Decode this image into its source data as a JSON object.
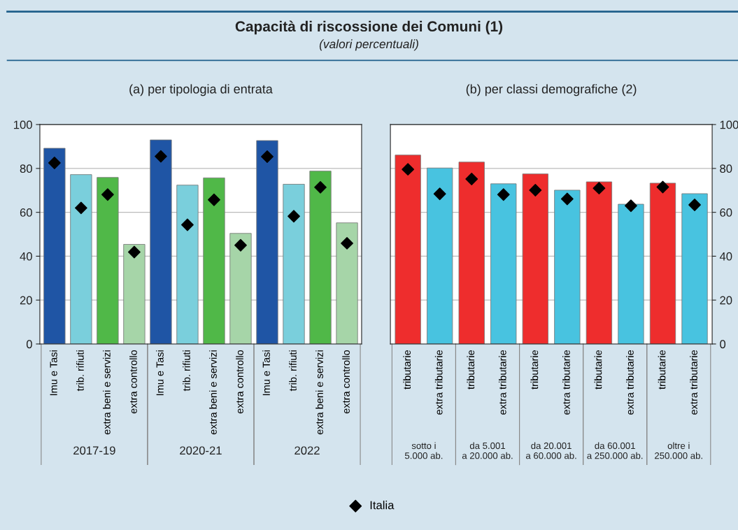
{
  "chart_data": [
    {
      "type": "other",
      "title": "Capacità di riscossione dei Comuni (1)",
      "subtitle": "(valori percentuali)"
    },
    {
      "type": "bar",
      "title": "(a) per tipologia di entrata",
      "categories": [
        "Imu e Tasi",
        "trib. rifiuti",
        "extra beni e servizi",
        "extra controllo",
        "Imu e Tasi",
        "trib. rifiuti",
        "extra beni e servizi",
        "extra controllo",
        "Imu e Tasi",
        "trib. rifiuti",
        "extra beni e servizi",
        "extra controllo"
      ],
      "series": [
        {
          "type": "bar",
          "colors": [
            "#1f55a5",
            "#7acfdc",
            "#50b848",
            "#a6d5a8",
            "#1f55a5",
            "#7acfdc",
            "#50b848",
            "#a6d5a8",
            "#1f55a5",
            "#7acfdc",
            "#50b848",
            "#a6d5a8"
          ],
          "values": [
            89.2,
            77.2,
            75.9,
            45.4,
            93.0,
            72.4,
            75.7,
            50.4,
            92.7,
            72.8,
            78.8,
            55.2
          ]
        },
        {
          "type": "scatter",
          "name": "Italia",
          "color": "#000000",
          "values": [
            82.5,
            62.0,
            68.1,
            41.9,
            85.5,
            54.3,
            65.7,
            45.0,
            85.4,
            58.2,
            71.4,
            45.9
          ]
        }
      ],
      "annotations": [
        "2017-19",
        "2020-21",
        "2022"
      ],
      "ylim": [
        0,
        100
      ],
      "yticks": [
        0,
        20,
        40,
        60,
        80,
        100
      ],
      "grid": "y",
      "marker": "diamond",
      "legend": "bottom"
    },
    {
      "type": "bar",
      "title": "(b) per classi demografiche (2)",
      "categories": [
        "tributarie",
        "extra tributarie",
        "tributarie",
        "extra tributarie",
        "tributarie",
        "extra tributarie",
        "tributarie",
        "extra tributarie",
        "tributarie",
        "extra tributarie"
      ],
      "series": [
        {
          "type": "bar",
          "axis": "y2",
          "colors": [
            "#ee2d2d",
            "#48c3e0",
            "#ee2d2d",
            "#48c3e0",
            "#ee2d2d",
            "#48c3e0",
            "#ee2d2d",
            "#48c3e0",
            "#ee2d2d",
            "#48c3e0"
          ],
          "values": [
            86.1,
            80.2,
            82.9,
            73.0,
            77.5,
            70.1,
            73.9,
            63.7,
            73.3,
            68.5
          ]
        },
        {
          "type": "scatter",
          "axis": "y2",
          "color": "#000000",
          "values": [
            79.6,
            68.4,
            75.2,
            68.1,
            70.1,
            66.1,
            71.0,
            63.0,
            71.5,
            63.4
          ]
        }
      ],
      "annotations": [
        "sotto i\n5.000 ab.",
        "da 5.001\na 20.000 ab.",
        "da 20.001\na 60.000 ab.",
        "da 60.001\na 250.000 ab.",
        "oltre i\n250.000 ab."
      ],
      "y2lim": [
        0,
        100
      ],
      "y2ticks": [
        0,
        20,
        40,
        60,
        80,
        100
      ],
      "grid": "y",
      "marker": "diamond"
    }
  ]
}
